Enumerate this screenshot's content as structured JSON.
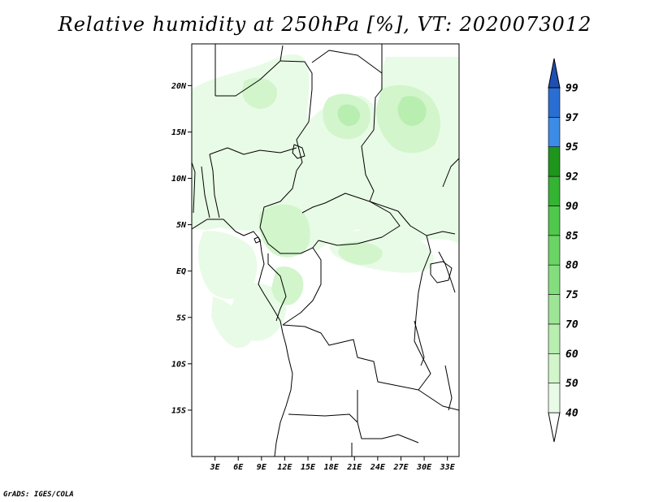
{
  "title": "Relative humidity at 250hPa [%], VT: 2020073012",
  "footer": "GrADS: IGES/COLA",
  "map": {
    "lon_range": [
      0,
      34.5
    ],
    "lat_range": [
      -20,
      24.5
    ],
    "lat_ticks": [
      {
        "value": 20,
        "label": "20N"
      },
      {
        "value": 15,
        "label": "15N"
      },
      {
        "value": 10,
        "label": "10N"
      },
      {
        "value": 5,
        "label": "5N"
      },
      {
        "value": 0,
        "label": "EQ"
      },
      {
        "value": -5,
        "label": "5S"
      },
      {
        "value": -10,
        "label": "10S"
      },
      {
        "value": -15,
        "label": "15S"
      }
    ],
    "lon_ticks": [
      {
        "value": 3,
        "label": "3E"
      },
      {
        "value": 6,
        "label": "6E"
      },
      {
        "value": 9,
        "label": "9E"
      },
      {
        "value": 12,
        "label": "12E"
      },
      {
        "value": 15,
        "label": "15E"
      },
      {
        "value": 18,
        "label": "18E"
      },
      {
        "value": 21,
        "label": "21E"
      },
      {
        "value": 24,
        "label": "24E"
      },
      {
        "value": 27,
        "label": "27E"
      },
      {
        "value": 30,
        "label": "30E"
      },
      {
        "value": 33,
        "label": "33E"
      }
    ]
  },
  "colorbar": {
    "levels": [
      "40",
      "50",
      "60",
      "70",
      "75",
      "80",
      "85",
      "90",
      "92",
      "95",
      "97",
      "99"
    ],
    "colors": [
      "#ffffff",
      "#e8fbe6",
      "#d2f5cc",
      "#b8efb0",
      "#9ee696",
      "#84de7e",
      "#6ad464",
      "#4fc84b",
      "#34b432",
      "#1e961c",
      "#3c8ce6",
      "#2a6ed4",
      "#1e50b4"
    ]
  },
  "humidity_fields": [
    {
      "name": "sahel-north-patch",
      "level": 1
    },
    {
      "name": "chad-patch",
      "level": 1
    },
    {
      "name": "nigeria-patch",
      "level": 1
    },
    {
      "name": "sudan-patch",
      "level": 1
    },
    {
      "name": "gabon-patch",
      "level": 1
    },
    {
      "name": "congo-patch",
      "level": 1
    },
    {
      "name": "drc-north-patch",
      "level": 1
    },
    {
      "name": "angola-coast-patch",
      "level": 1
    },
    {
      "name": "cameroon-core",
      "level": 2
    },
    {
      "name": "sudan-core",
      "level": 2
    },
    {
      "name": "chad-core",
      "level": 2
    },
    {
      "name": "congo-core",
      "level": 2
    },
    {
      "name": "drc-core",
      "level": 2
    },
    {
      "name": "libya-core",
      "level": 2
    },
    {
      "name": "sudan-inner",
      "level": 3
    },
    {
      "name": "car-inner",
      "level": 3
    }
  ]
}
